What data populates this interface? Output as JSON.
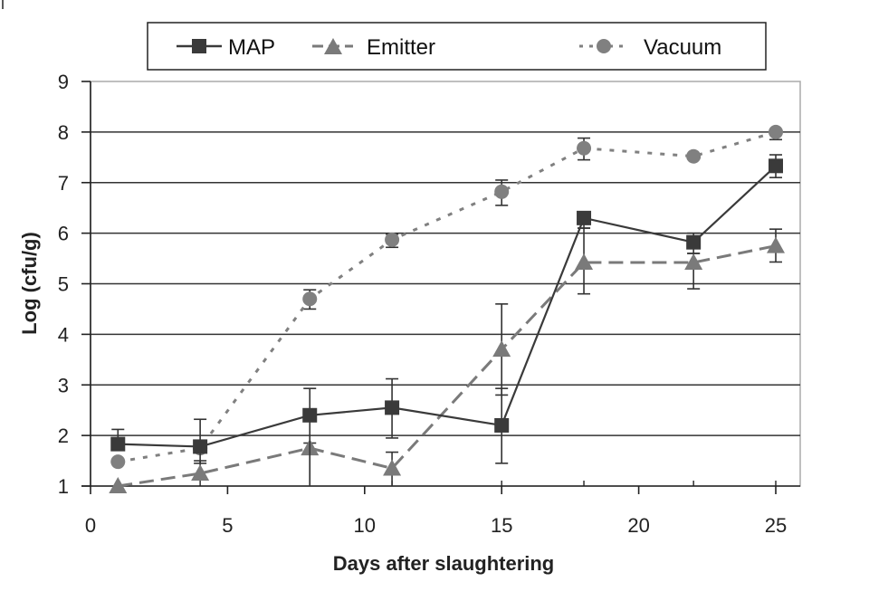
{
  "chart_data": {
    "type": "line",
    "title": "",
    "xlabel": "Days after slaughtering",
    "ylabel": "Log (cfu/g)",
    "xlim": [
      0,
      26
    ],
    "ylim": [
      1,
      9
    ],
    "xticks": [
      0,
      5,
      10,
      15,
      20,
      25
    ],
    "yticks": [
      1,
      2,
      3,
      4,
      5,
      6,
      7,
      8,
      9
    ],
    "grid": "horizontal",
    "legend_position": "top",
    "x": [
      1,
      4,
      8,
      11,
      15,
      18,
      22,
      25
    ],
    "series": [
      {
        "name": "MAP",
        "color": "#3a3a3a",
        "marker": "square",
        "line_style": "solid",
        "values": [
          1.83,
          1.78,
          2.4,
          2.55,
          2.2,
          6.3,
          5.82,
          7.33
        ],
        "error_low": [
          1.83,
          1.45,
          1.0,
          1.95,
          1.45,
          6.1,
          5.6,
          7.1
        ],
        "error_high": [
          2.12,
          2.32,
          2.93,
          3.12,
          2.93,
          6.3,
          6.0,
          7.55
        ]
      },
      {
        "name": "Emitter",
        "color": "#7a7a7a",
        "marker": "triangle",
        "line_style": "dashed",
        "values": [
          1.0,
          1.25,
          1.75,
          1.35,
          3.7,
          5.42,
          5.42,
          5.75
        ],
        "error_low": [
          1.0,
          1.25,
          1.0,
          1.0,
          2.8,
          4.8,
          4.9,
          5.43
        ],
        "error_high": [
          1.0,
          1.5,
          1.85,
          1.67,
          4.6,
          6.1,
          5.6,
          6.08
        ]
      },
      {
        "name": "Vacuum",
        "color": "#808080",
        "marker": "circle",
        "line_style": "dotted",
        "values": [
          1.48,
          1.75,
          4.7,
          5.87,
          6.82,
          7.68,
          7.52,
          8.0
        ],
        "error_low": [
          1.48,
          1.75,
          4.5,
          5.72,
          6.55,
          7.45,
          7.52,
          7.85
        ],
        "error_high": [
          1.48,
          1.75,
          4.88,
          5.98,
          7.05,
          7.88,
          7.52,
          8.0
        ]
      }
    ]
  }
}
